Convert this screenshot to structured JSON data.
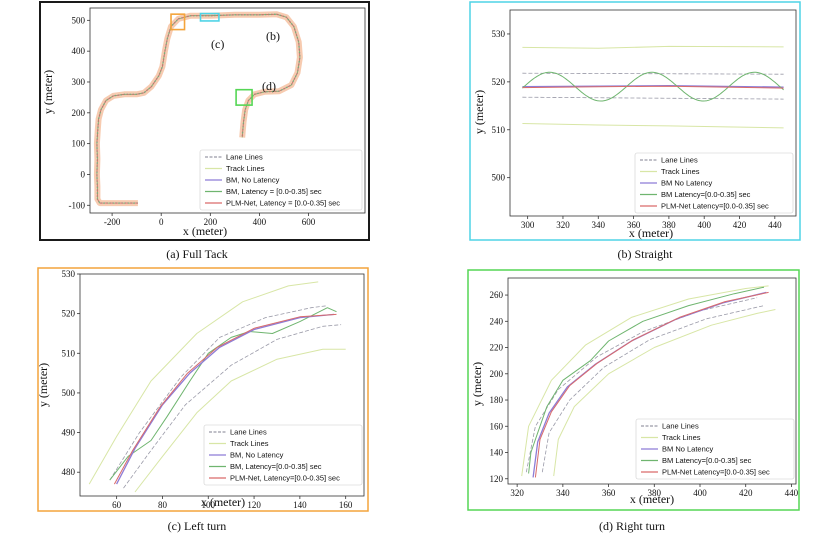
{
  "colors": {
    "lane": "#9a9aa8",
    "track": "#d8e6a6",
    "bm_nolat": "#8e7cd6",
    "bm_lat": "#6fb56f",
    "plm": "#d96b6b",
    "frame_a": "#1a1a1a",
    "frame_b": "#4fd3e6",
    "frame_c": "#f4a43b",
    "frame_d": "#55d655"
  },
  "chart_data": [
    {
      "id": "a",
      "type": "line",
      "caption": "(a) Full Tack",
      "xlabel": "x (meter)",
      "ylabel": "y (meter)",
      "xlim": [
        -290,
        830
      ],
      "ylim": [
        -125,
        540
      ],
      "xticks": [
        -200,
        0,
        200,
        400,
        600
      ],
      "xtick_labels": [
        "-200",
        "0",
        "200",
        "400",
        "600"
      ],
      "yticks": [
        -100,
        0,
        100,
        200,
        300,
        400,
        500
      ],
      "ytick_labels": [
        "-100",
        "0",
        "100",
        "200",
        "300",
        "400",
        "500"
      ],
      "box_labels": [
        "(c)",
        "(b)",
        "(d)"
      ],
      "legend": [
        "Lane Lines",
        "Track Lines",
        "BM, No Latency",
        "BM, Latency = [0.0-0.35] sec",
        "PLM-Net, Latency = [0.0-0.35] sec"
      ],
      "centerline": [
        [
          -95,
          -93
        ],
        [
          -250,
          -93
        ],
        [
          -260,
          -80
        ],
        [
          -260,
          -40
        ],
        [
          -262,
          0
        ],
        [
          -260,
          50
        ],
        [
          -262,
          100
        ],
        [
          -258,
          150
        ],
        [
          -255,
          180
        ],
        [
          -245,
          210
        ],
        [
          -225,
          240
        ],
        [
          -195,
          255
        ],
        [
          -150,
          260
        ],
        [
          -100,
          260
        ],
        [
          -70,
          265
        ],
        [
          -40,
          285
        ],
        [
          -10,
          320
        ],
        [
          5,
          350
        ],
        [
          15,
          400
        ],
        [
          25,
          440
        ],
        [
          40,
          480
        ],
        [
          70,
          505
        ],
        [
          120,
          515
        ],
        [
          200,
          515
        ],
        [
          300,
          518
        ],
        [
          400,
          518
        ],
        [
          470,
          520
        ],
        [
          510,
          510
        ],
        [
          540,
          480
        ],
        [
          560,
          430
        ],
        [
          565,
          380
        ],
        [
          555,
          330
        ],
        [
          530,
          290
        ],
        [
          480,
          270
        ],
        [
          420,
          268
        ],
        [
          380,
          260
        ],
        [
          355,
          240
        ],
        [
          342,
          210
        ],
        [
          335,
          170
        ],
        [
          330,
          120
        ]
      ]
    },
    {
      "id": "b",
      "type": "line",
      "caption": "(b) Straight",
      "xlabel": "x (meter)",
      "ylabel": "y (meter)",
      "xlim": [
        290,
        452
      ],
      "ylim": [
        492,
        535
      ],
      "xticks": [
        300,
        320,
        340,
        360,
        380,
        400,
        420,
        440
      ],
      "xtick_labels": [
        "300",
        "320",
        "340",
        "360",
        "380",
        "400",
        "420",
        "440"
      ],
      "yticks": [
        500,
        510,
        520,
        530
      ],
      "ytick_labels": [
        "500",
        "510",
        "520",
        "530"
      ],
      "legend": [
        "Lane Lines",
        "Track Lines",
        "BM No Latency",
        "BM Latency=[0.0-0.35] sec",
        "PLM-Net Latency=[0.0-0.35] sec"
      ],
      "series": [
        {
          "name": "Lane Lines",
          "style": "lane",
          "x": [
            297,
            445
          ],
          "y": [
            521.8,
            521.6
          ]
        },
        {
          "name": "Lane Lines",
          "style": "lane",
          "x": [
            297,
            445
          ],
          "y": [
            516.8,
            516.4
          ]
        },
        {
          "name": "Track Lines",
          "style": "track",
          "x": [
            297,
            340,
            380,
            445
          ],
          "y": [
            527.2,
            527.0,
            527.4,
            527.3
          ]
        },
        {
          "name": "Track Lines",
          "style": "track",
          "x": [
            297,
            340,
            380,
            445
          ],
          "y": [
            511.3,
            511.0,
            510.8,
            510.4
          ]
        },
        {
          "name": "BM No Latency",
          "style": "bm_nolat",
          "x": [
            297,
            340,
            380,
            445
          ],
          "y": [
            519.0,
            519.1,
            519.2,
            518.9
          ]
        },
        {
          "name": "BM Latency=[0.0-0.35] sec",
          "style": "bm_lat",
          "wave": {
            "x0": 297,
            "x1": 445,
            "base": 519,
            "amp": 3.0,
            "period": 58,
            "phase": -0.1
          }
        },
        {
          "name": "PLM-Net Latency=[0.0-0.35] sec",
          "style": "plm",
          "x": [
            297,
            340,
            380,
            445
          ],
          "y": [
            518.8,
            519.0,
            519.1,
            518.7
          ]
        }
      ]
    },
    {
      "id": "c",
      "type": "line",
      "caption": "(c) Left turn",
      "xlabel": "x (meter)",
      "ylabel": "y (meter)",
      "xlim": [
        44,
        168
      ],
      "ylim": [
        474,
        530
      ],
      "xticks": [
        60,
        80,
        100,
        120,
        140,
        160
      ],
      "xtick_labels": [
        "60",
        "80",
        "100",
        "120",
        "140",
        "160"
      ],
      "yticks": [
        480,
        490,
        500,
        510,
        520,
        530
      ],
      "ytick_labels": [
        "480",
        "490",
        "500",
        "510",
        "520",
        "530"
      ],
      "legend": [
        "Lane Lines",
        "Track Lines",
        "BM, No Latency",
        "BM, Latency=[0.0-0.35] sec",
        "PLM-Net, Latency=[0.0-0.35] sec"
      ],
      "series": [
        {
          "name": "Track Lines",
          "style": "track",
          "x": [
            48,
            60,
            75,
            95,
            115,
            135,
            148
          ],
          "y": [
            477,
            489,
            503,
            515,
            523,
            527,
            528
          ]
        },
        {
          "name": "Track Lines",
          "style": "track",
          "x": [
            68,
            80,
            95,
            110,
            130,
            150,
            160
          ],
          "y": [
            475,
            484,
            495,
            503,
            508.5,
            511,
            511
          ]
        },
        {
          "name": "Lane Lines",
          "style": "lane",
          "x": [
            57,
            70,
            88,
            105,
            125,
            145,
            152
          ],
          "y": [
            478,
            490,
            504,
            514,
            519,
            521.5,
            522
          ]
        },
        {
          "name": "Lane Lines",
          "style": "lane",
          "x": [
            63,
            75,
            90,
            110,
            130,
            150,
            158
          ],
          "y": [
            476,
            485.5,
            497,
            507,
            513.5,
            516.8,
            517.2
          ]
        },
        {
          "name": "BM, Latency=[0.0-0.35] sec",
          "style": "bm_lat",
          "x": [
            57,
            65,
            75,
            82,
            92,
            100,
            110,
            118,
            128,
            140,
            152,
            156
          ],
          "y": [
            478,
            484,
            488,
            494,
            503,
            510,
            514,
            515.5,
            515,
            518,
            521.5,
            520.5
          ]
        },
        {
          "name": "BM, No Latency",
          "style": "bm_nolat",
          "x": [
            60,
            68,
            80,
            92,
            105,
            120,
            140,
            155
          ],
          "y": [
            477,
            486,
            497,
            505,
            511.5,
            516,
            519,
            519.8
          ]
        },
        {
          "name": "PLM-Net, Latency=[0.0-0.35] sec",
          "style": "plm",
          "x": [
            59,
            67,
            79,
            91,
            104,
            120,
            140,
            156
          ],
          "y": [
            477,
            485.5,
            496.5,
            505,
            511.5,
            516.3,
            519.2,
            519.8
          ]
        }
      ]
    },
    {
      "id": "d",
      "type": "line",
      "caption": "(d) Right turn",
      "xlabel": "x (meter)",
      "ylabel": "y (meter)",
      "xlim": [
        316,
        442
      ],
      "ylim": [
        116,
        273
      ],
      "xticks": [
        320,
        340,
        360,
        380,
        400,
        420,
        440
      ],
      "xtick_labels": [
        "320",
        "340",
        "360",
        "380",
        "400",
        "420",
        "440"
      ],
      "yticks": [
        120,
        140,
        160,
        180,
        200,
        220,
        240,
        260
      ],
      "ytick_labels": [
        "120",
        "140",
        "160",
        "180",
        "200",
        "220",
        "240",
        "260"
      ],
      "legend": [
        "Lane Lines",
        "Track Lines",
        "BM No Latency",
        "BM Latency=[0.0-0.35] sec",
        "PLM-Net Latency=[0.0-0.35] sec"
      ],
      "series": [
        {
          "name": "Track Lines",
          "style": "track",
          "x": [
            322,
            325,
            335,
            350,
            370,
            395,
            420,
            430
          ],
          "y": [
            122,
            160,
            195,
            222,
            243,
            257,
            265,
            267
          ]
        },
        {
          "name": "Track Lines",
          "style": "track",
          "x": [
            336,
            338,
            345,
            360,
            380,
            405,
            425,
            433
          ],
          "y": [
            122,
            150,
            175,
            200,
            220,
            237,
            246,
            249
          ]
        },
        {
          "name": "Lane Lines",
          "style": "lane",
          "x": [
            324,
            328,
            338,
            355,
            375,
            400,
            425
          ],
          "y": [
            125,
            160,
            188,
            213,
            232,
            248,
            258
          ]
        },
        {
          "name": "Lane Lines",
          "style": "lane",
          "x": [
            331,
            334,
            343,
            358,
            378,
            403,
            428
          ],
          "y": [
            125,
            155,
            180,
            205,
            226,
            242,
            252
          ]
        },
        {
          "name": "BM Latency=[0.0-0.35] sec",
          "style": "bm_lat",
          "x": [
            325,
            326,
            329,
            333,
            340,
            352,
            360,
            375,
            395,
            415,
            428
          ],
          "y": [
            124,
            140,
            155,
            175,
            195,
            210,
            225,
            240,
            252,
            261,
            266
          ]
        },
        {
          "name": "BM No Latency",
          "style": "bm_nolat",
          "x": [
            327,
            329,
            334,
            342,
            354,
            370,
            390,
            410,
            429
          ],
          "y": [
            121,
            148,
            170,
            190,
            207,
            225,
            242,
            254,
            262
          ]
        },
        {
          "name": "PLM-Net Latency=[0.0-0.35] sec",
          "style": "plm",
          "x": [
            328,
            330,
            335,
            343,
            355,
            371,
            391,
            411,
            430
          ],
          "y": [
            121,
            150,
            171,
            191,
            208,
            226,
            243,
            255,
            262
          ]
        }
      ]
    }
  ]
}
